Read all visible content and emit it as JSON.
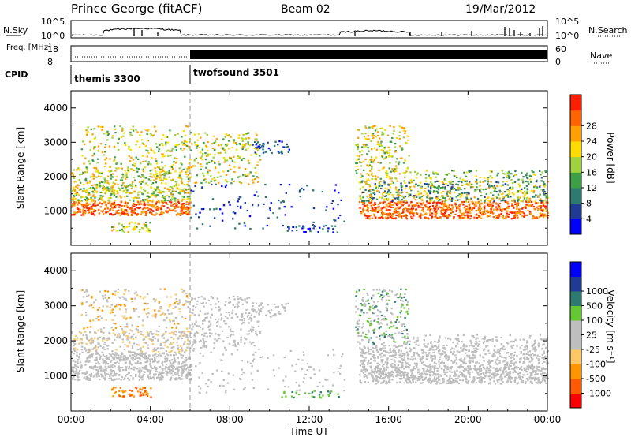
{
  "header": {
    "station": "Prince George (fitACF)",
    "beam": "Beam 02",
    "date": "19/Mar/2012"
  },
  "colors": {
    "power": [
      "#0000ff",
      "#1e3c96",
      "#2d7a6e",
      "#3c9e46",
      "#9fd23c",
      "#ffdc00",
      "#ffa000",
      "#ff6400",
      "#ff1e00"
    ],
    "velocity": [
      "#ff0000",
      "#ff5a00",
      "#ff9600",
      "#ffc864",
      "#bebebe",
      "#bebebe",
      "#64c832",
      "#2d7a6e",
      "#1e3c96",
      "#0000ff"
    ]
  },
  "chart_data": [
    {
      "type": "line",
      "panel": "noise",
      "ylabel_left": "N.Sky",
      "ylabel_right": "N.Search",
      "left_ticks": [
        "10^5",
        "10^0"
      ],
      "right_ticks": [
        "10^5",
        "10^0"
      ]
    },
    {
      "type": "line",
      "panel": "frequency",
      "ylabel_left": "Freq. [MHz]",
      "ylabel_right": "Nave",
      "left_ticks": [
        "18",
        "8"
      ],
      "right_ticks": [
        "60",
        "0"
      ],
      "cpid_label": "CPID",
      "programs": [
        {
          "name": "themis 3300",
          "start": 0,
          "end": 6
        },
        {
          "name": "twofsound 3501",
          "start": 6,
          "end": 24
        }
      ]
    },
    {
      "type": "heatmap",
      "panel": "power",
      "ylabel": "Slant Range [km]",
      "yticks": [
        1000,
        2000,
        3000,
        4000
      ],
      "ylim": [
        0,
        4500
      ],
      "xlim": [
        0,
        24
      ],
      "colorbar_label": "Power [dB]",
      "colorbar_ticks": [
        "4",
        "8",
        "12",
        "16",
        "20",
        "24",
        "28"
      ]
    },
    {
      "type": "heatmap",
      "panel": "velocity",
      "ylabel": "Slant Range [km]",
      "yticks": [
        1000,
        2000,
        3000,
        4000
      ],
      "ylim": [
        0,
        4500
      ],
      "xlim": [
        0,
        24
      ],
      "colorbar_label": "Velocity [m s⁻¹]",
      "colorbar_ticks": [
        "-1000",
        "-500",
        "-100",
        "-25",
        "25",
        "100",
        "500",
        "1000"
      ]
    }
  ],
  "xaxis": {
    "label": "Time UT",
    "ticks": [
      "00:00",
      "04:00",
      "08:00",
      "12:00",
      "16:00",
      "20:00",
      "00:00"
    ]
  }
}
